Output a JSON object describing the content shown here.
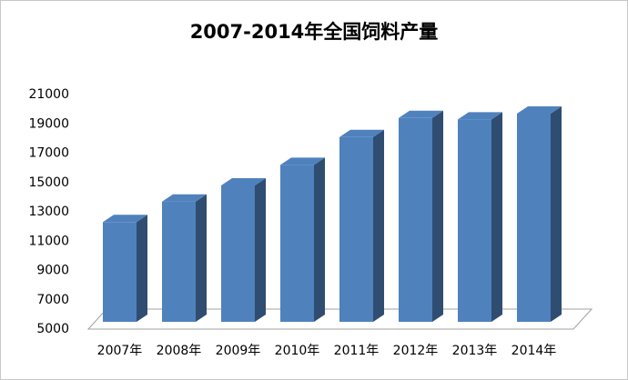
{
  "chart_data": {
    "type": "bar",
    "title": "2007-2014年全国饲料产量",
    "categories": [
      "2007年",
      "2008年",
      "2009年",
      "2010年",
      "2011年",
      "2012年",
      "2013年",
      "2014年"
    ],
    "values": [
      12300,
      13700,
      14800,
      16200,
      18100,
      19400,
      19300,
      19700
    ],
    "color": "#4f81bd",
    "ylim": [
      5000,
      21000
    ],
    "yticks": [
      5000,
      7000,
      9000,
      11000,
      13000,
      15000,
      17000,
      19000,
      21000
    ],
    "grid": false
  }
}
